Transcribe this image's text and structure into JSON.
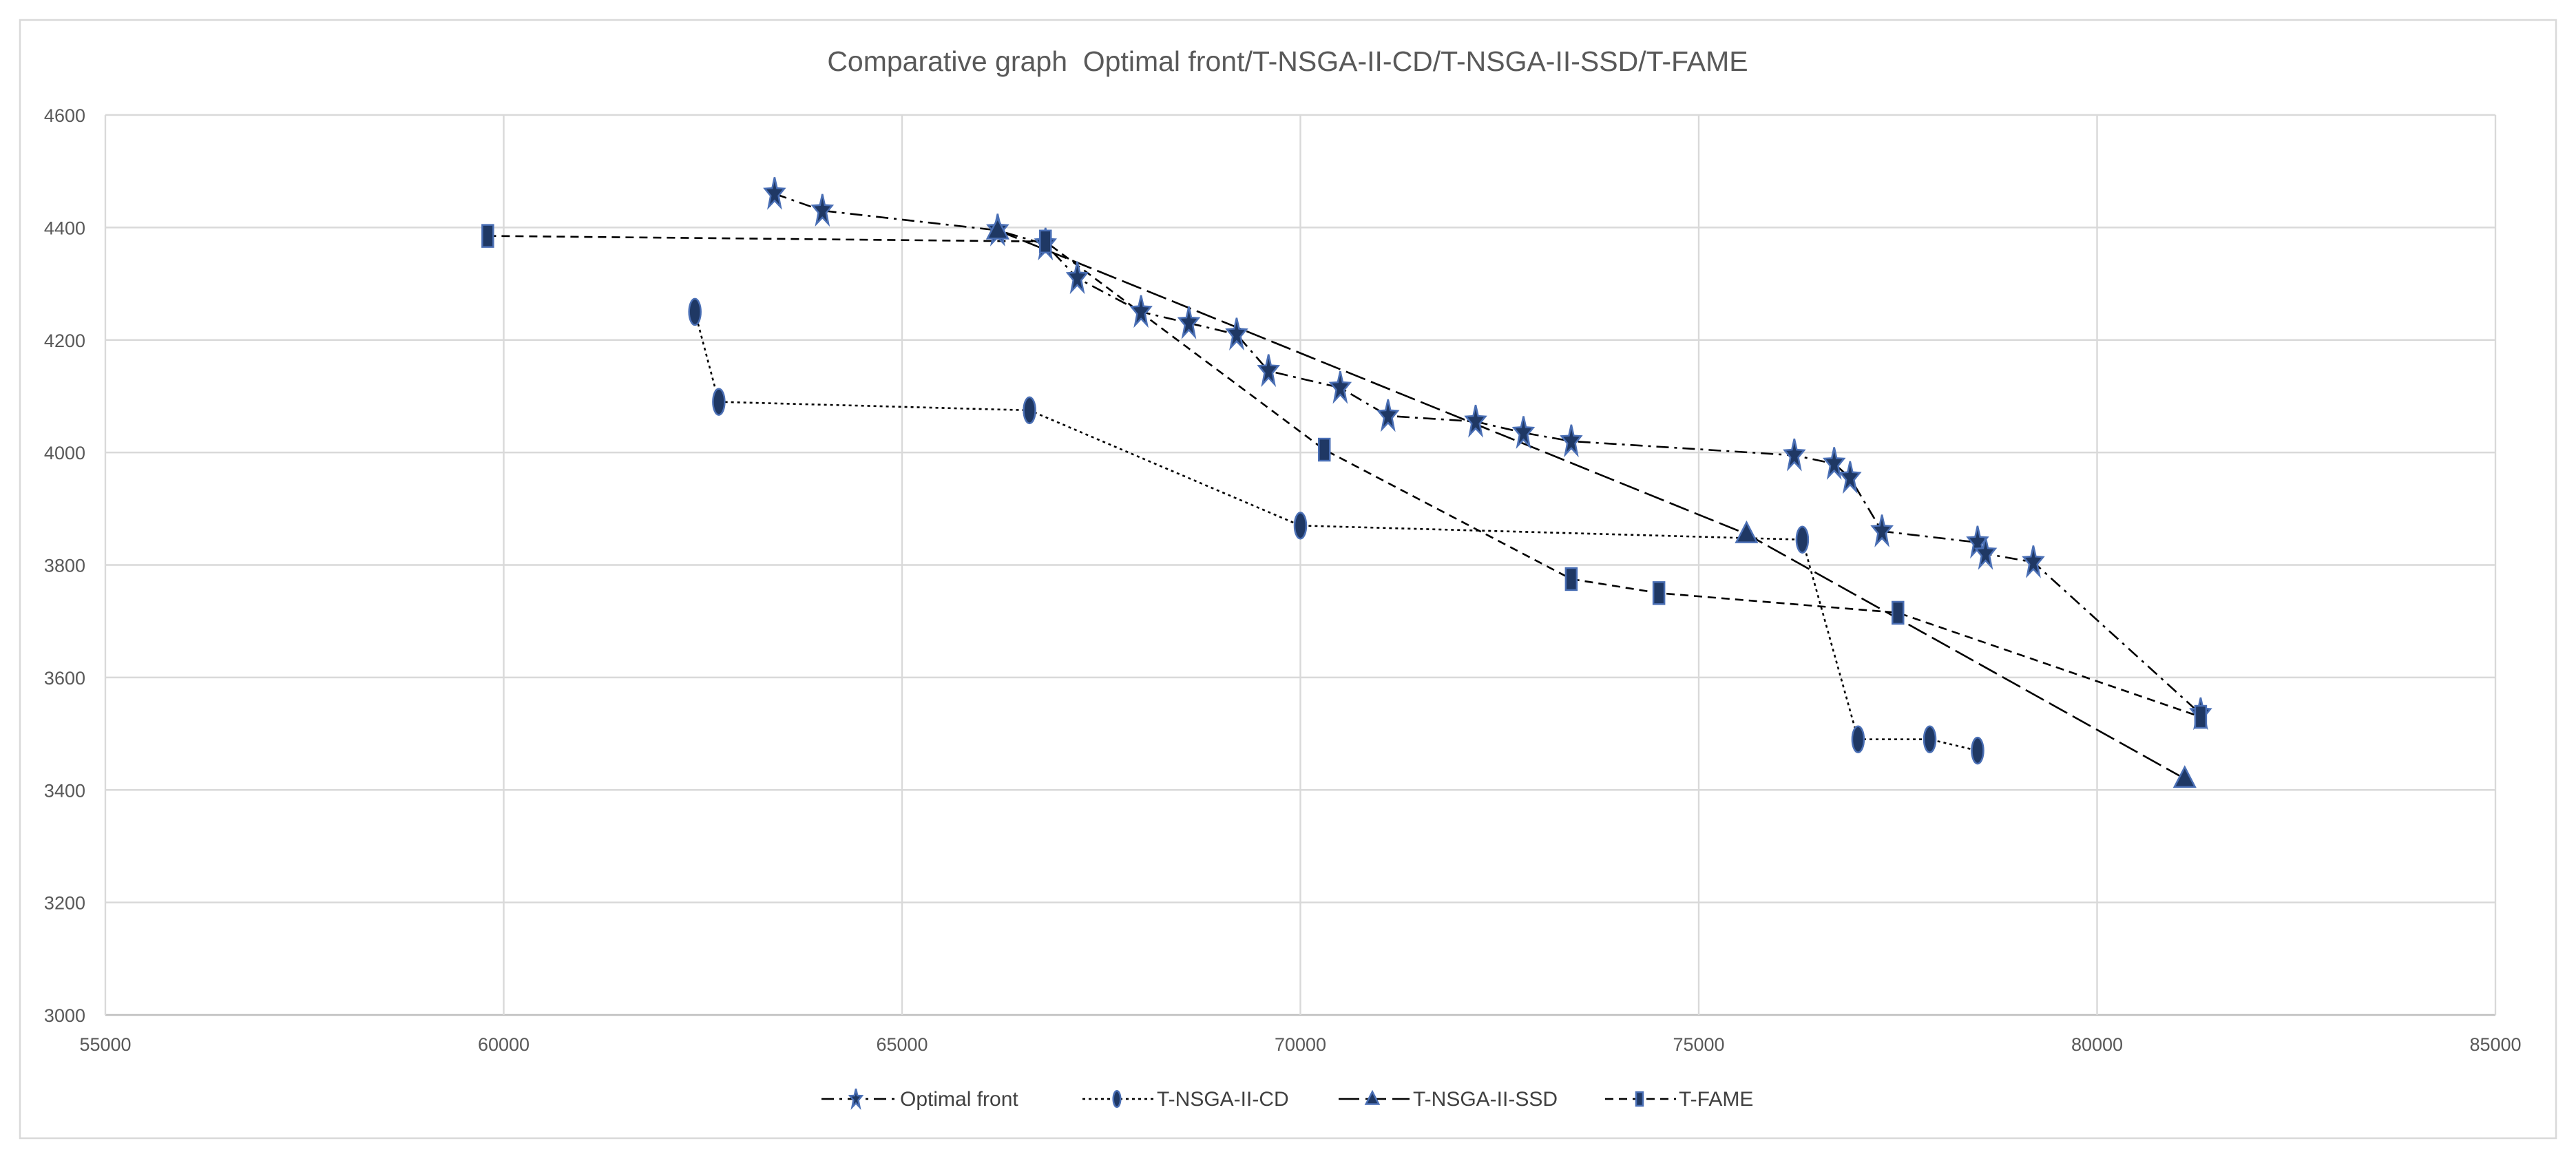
{
  "chart_data": {
    "type": "line",
    "title": "Comparative graph  Optimal front/T-NSGA-II-CD/T-NSGA-II-SSD/T-FAME",
    "xlabel": "",
    "ylabel": "",
    "xlim": [
      55000,
      85000
    ],
    "ylim": [
      3000,
      4600
    ],
    "x_ticks": [
      55000,
      60000,
      65000,
      70000,
      75000,
      80000,
      85000
    ],
    "y_ticks": [
      3000,
      3200,
      3400,
      3600,
      3800,
      4000,
      4200,
      4400,
      4600
    ],
    "grid": true,
    "legend_position": "bottom",
    "series": [
      {
        "name": "Optimal front",
        "marker": "star",
        "x": [
          63400,
          64000,
          66200,
          66800,
          67200,
          68000,
          68600,
          69200,
          69600,
          70500,
          71100,
          72200,
          72800,
          73400,
          76200,
          76700,
          76900,
          77300,
          78500,
          78600,
          79200,
          81300
        ],
        "y": [
          4460,
          4430,
          4395,
          4370,
          4310,
          4250,
          4230,
          4210,
          4145,
          4115,
          4065,
          4055,
          4035,
          4020,
          3995,
          3980,
          3955,
          3860,
          3840,
          3820,
          3805,
          3535
        ]
      },
      {
        "name": "T-NSGA-II-CD",
        "marker": "ellipse",
        "x": [
          62400,
          62700,
          66600,
          70000,
          76300,
          77000,
          77900,
          78500
        ],
        "y": [
          4250,
          4090,
          4075,
          3870,
          3845,
          3490,
          3490,
          3470
        ]
      },
      {
        "name": "T-NSGA-II-SSD",
        "marker": "triangle",
        "x": [
          66200,
          75600,
          81100
        ],
        "y": [
          4395,
          3855,
          3420
        ]
      },
      {
        "name": "T-FAME",
        "marker": "rectangle",
        "x": [
          59800,
          66800,
          70300,
          73400,
          74500,
          77500,
          81300
        ],
        "y": [
          4385,
          4375,
          4005,
          3775,
          3750,
          3715,
          3530
        ]
      }
    ]
  },
  "colors": {
    "background": "#ffffff",
    "grid": "#d9d9d9",
    "axis": "#bfbfbf",
    "line": "#000000",
    "marker_fill": "#1f3864",
    "marker_stroke": "#4a6fb5",
    "text": "#595959"
  }
}
